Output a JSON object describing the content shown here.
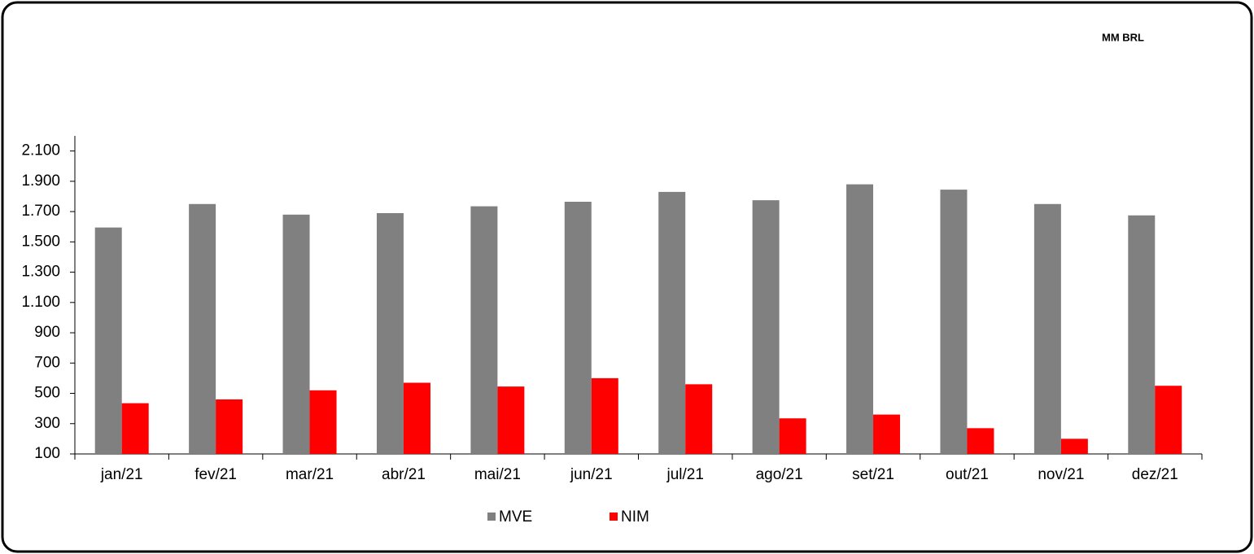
{
  "chart_data": {
    "type": "bar",
    "unit_label": "MM BRL",
    "categories": [
      "jan/21",
      "fev/21",
      "mar/21",
      "abr/21",
      "mai/21",
      "jun/21",
      "jul/21",
      "ago/21",
      "set/21",
      "out/21",
      "nov/21",
      "dez/21"
    ],
    "series": [
      {
        "name": "MVE",
        "color": "#808080",
        "values": [
          1595,
          1750,
          1680,
          1690,
          1735,
          1765,
          1830,
          1775,
          1880,
          1845,
          1750,
          1675
        ]
      },
      {
        "name": "NIM",
        "color": "#ff0000",
        "values": [
          435,
          460,
          520,
          570,
          545,
          600,
          560,
          335,
          360,
          270,
          200,
          550
        ]
      }
    ],
    "ylim": [
      100,
      2200
    ],
    "yticks": [
      100,
      300,
      500,
      700,
      900,
      {
        "value": 1100,
        "label": "1.100"
      },
      {
        "value": 1300,
        "label": "1.300"
      },
      {
        "value": 1500,
        "label": "1.500"
      },
      {
        "value": 1700,
        "label": "1.700"
      },
      {
        "value": 1900,
        "label": "1.900"
      },
      {
        "value": 2100,
        "label": "2.100"
      }
    ],
    "grid": false
  }
}
